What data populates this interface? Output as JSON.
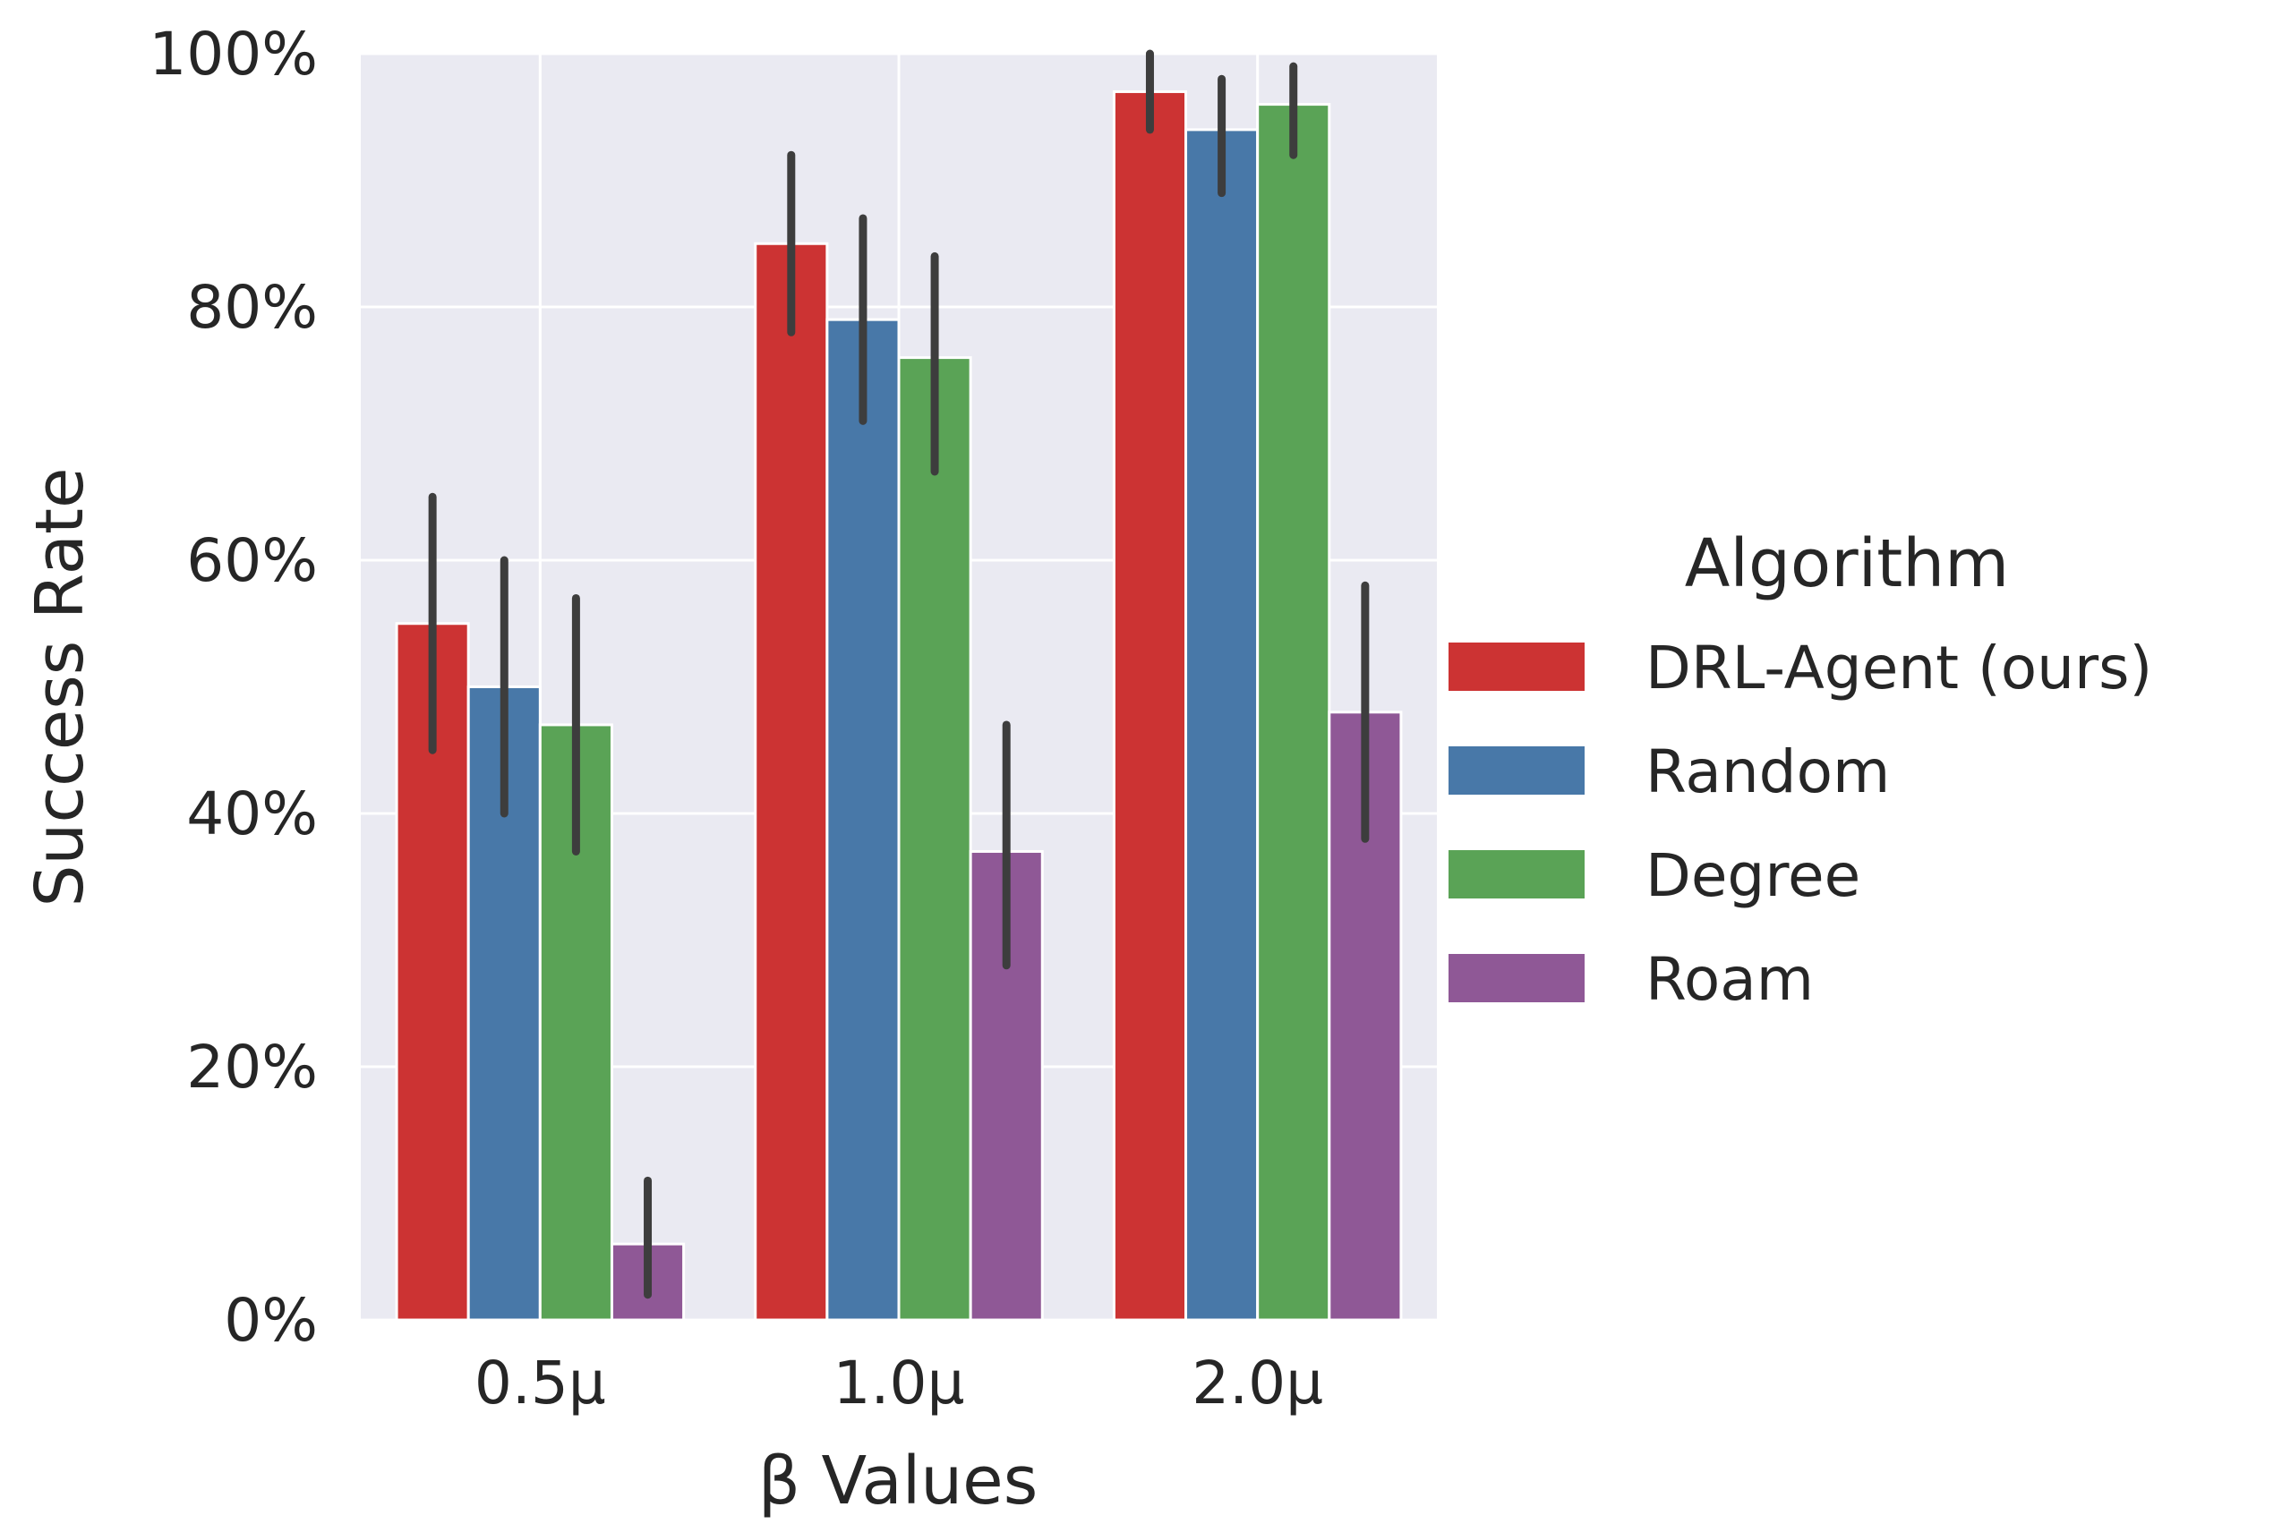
{
  "chart_data": {
    "type": "bar",
    "xlabel": "β Values",
    "ylabel": "Success Rate",
    "ylim": [
      0,
      100
    ],
    "y_ticks": [
      "0%",
      "20%",
      "40%",
      "60%",
      "80%",
      "100%"
    ],
    "y_tick_values": [
      0,
      20,
      40,
      60,
      80,
      100
    ],
    "categories": [
      "0.5μ",
      "1.0μ",
      "2.0μ"
    ],
    "grid": true,
    "legend": {
      "title": "Algorithm",
      "placement": "right"
    },
    "series": [
      {
        "name": "DRL-Agent (ours)",
        "color": "#cc3333",
        "values": [
          55,
          85,
          97
        ],
        "err_low": [
          45,
          78,
          94
        ],
        "err_high": [
          65,
          92,
          100
        ]
      },
      {
        "name": "Random",
        "color": "#4878a8",
        "values": [
          50,
          79,
          94
        ],
        "err_low": [
          40,
          71,
          89
        ],
        "err_high": [
          60,
          87,
          98
        ]
      },
      {
        "name": "Degree",
        "color": "#5aa356",
        "values": [
          47,
          76,
          96
        ],
        "err_low": [
          37,
          67,
          92
        ],
        "err_high": [
          57,
          84,
          99
        ]
      },
      {
        "name": "Roam",
        "color": "#8f5896",
        "values": [
          6,
          37,
          48
        ],
        "err_low": [
          2,
          28,
          38
        ],
        "err_high": [
          11,
          47,
          58
        ]
      }
    ]
  }
}
